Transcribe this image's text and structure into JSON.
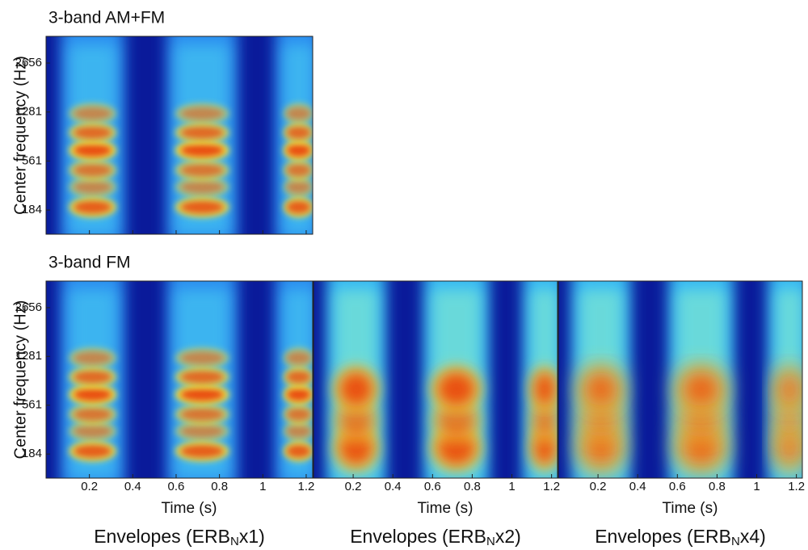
{
  "chart_data": [
    {
      "type": "spectrogram",
      "title": "3-band AM+FM",
      "ylabel": "Center frequency (Hz)",
      "yscale": "erb",
      "ylim": [
        71,
        3877
      ],
      "yticks": [
        184,
        561,
        1281,
        2656
      ],
      "xlim": [
        0,
        1.23
      ],
      "xticks": [
        0.2,
        0.4,
        0.6,
        0.8,
        1,
        1.2
      ],
      "show_xtick_labels": false
    },
    {
      "type": "spectrogram",
      "title": "3-band FM",
      "ylabel": "Center frequency (Hz)",
      "xlabel": "Time (s)",
      "caption": {
        "pre": "Envelopes (ERB",
        "sub": "N",
        "post": "x1)"
      },
      "yscale": "erb",
      "ylim": [
        71,
        3877
      ],
      "yticks": [
        184,
        561,
        1281,
        2656
      ],
      "xlim": [
        0,
        1.23
      ],
      "xticks": [
        0.2,
        0.4,
        0.6,
        0.8,
        1,
        1.2
      ],
      "show_xtick_labels": true
    },
    {
      "type": "spectrogram",
      "xlabel": "Time (s)",
      "caption": {
        "pre": "Envelopes (ERB",
        "sub": "N",
        "post": "x2)"
      },
      "yscale": "erb",
      "ylim": [
        71,
        3877
      ],
      "xlim": [
        0,
        1.23
      ],
      "xticks": [
        0.2,
        0.4,
        0.6,
        0.8,
        1,
        1.2
      ],
      "show_xtick_labels": true
    },
    {
      "type": "spectrogram",
      "xlabel": "Time (s)",
      "caption": {
        "pre": "Envelopes (ERB",
        "sub": "N",
        "post": "x4)"
      },
      "yscale": "erb",
      "ylim": [
        71,
        3877
      ],
      "xlim": [
        0,
        1.23
      ],
      "xticks": [
        0.2,
        0.4,
        0.6,
        0.8,
        1,
        1.2
      ],
      "show_xtick_labels": true
    }
  ]
}
